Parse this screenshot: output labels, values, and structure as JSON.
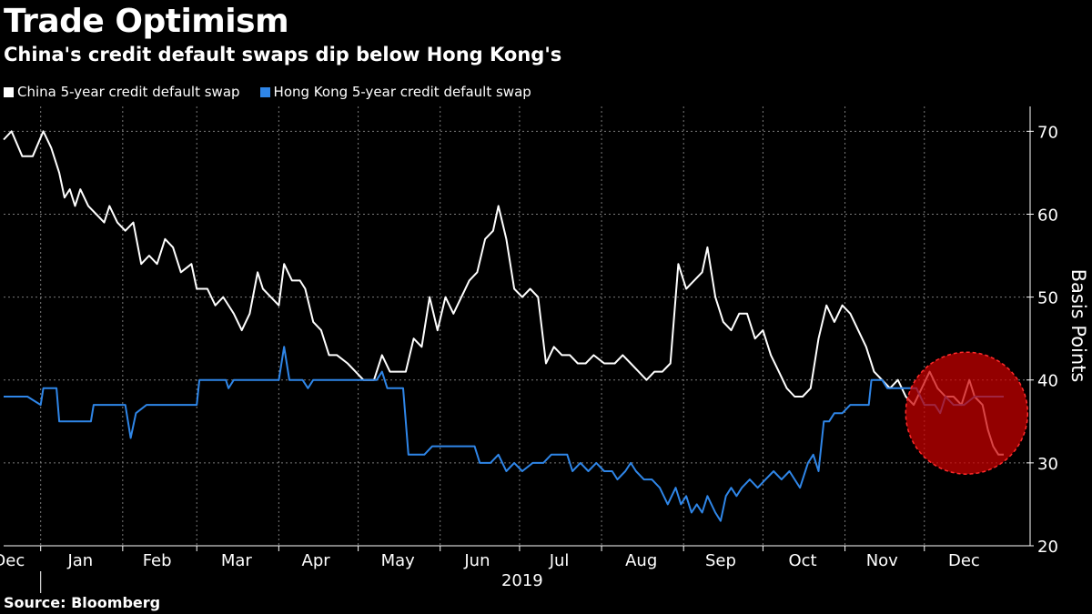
{
  "chart_data": {
    "type": "line",
    "title": "Trade Optimism",
    "subtitle": "China's credit default swaps dip below Hong Kong's",
    "source": "Source: Bloomberg",
    "ylabel": "Basis Points",
    "ylim": [
      20,
      73
    ],
    "yticks": [
      20,
      30,
      40,
      50,
      60,
      70
    ],
    "xrange": [
      "2018-12-18",
      "2019-12-31"
    ],
    "xtick_labels": [
      {
        "date": "2018-12-20",
        "label": "Dec"
      },
      {
        "date": "2019-01-16",
        "label": "Jan"
      },
      {
        "date": "2019-02-14",
        "label": "Feb"
      },
      {
        "date": "2019-03-16",
        "label": "Mar"
      },
      {
        "date": "2019-04-15",
        "label": "Apr"
      },
      {
        "date": "2019-05-16",
        "label": "May"
      },
      {
        "date": "2019-06-15",
        "label": "Jun"
      },
      {
        "date": "2019-07-16",
        "label": "Jul"
      },
      {
        "date": "2019-08-16",
        "label": "Aug"
      },
      {
        "date": "2019-09-15",
        "label": "Sep"
      },
      {
        "date": "2019-10-16",
        "label": "Oct"
      },
      {
        "date": "2019-11-15",
        "label": "Nov"
      },
      {
        "date": "2019-12-16",
        "label": "Dec"
      }
    ],
    "year_label": "2019",
    "grid": true,
    "legend_position": "top-left",
    "highlight": {
      "date": "2019-12-17",
      "value": 36,
      "color": "#cc0000"
    },
    "series": [
      {
        "name": "China 5-year credit default swap",
        "color": "#ffffff",
        "points": [
          [
            "2018-12-18",
            69
          ],
          [
            "2018-12-21",
            70
          ],
          [
            "2018-12-25",
            67
          ],
          [
            "2018-12-29",
            67
          ],
          [
            "2019-01-02",
            70
          ],
          [
            "2019-01-05",
            68
          ],
          [
            "2019-01-08",
            65
          ],
          [
            "2019-01-10",
            62
          ],
          [
            "2019-01-12",
            63
          ],
          [
            "2019-01-14",
            61
          ],
          [
            "2019-01-16",
            63
          ],
          [
            "2019-01-19",
            61
          ],
          [
            "2019-01-22",
            60
          ],
          [
            "2019-01-25",
            59
          ],
          [
            "2019-01-27",
            61
          ],
          [
            "2019-01-30",
            59
          ],
          [
            "2019-02-02",
            58
          ],
          [
            "2019-02-05",
            59
          ],
          [
            "2019-02-08",
            54
          ],
          [
            "2019-02-11",
            55
          ],
          [
            "2019-02-14",
            54
          ],
          [
            "2019-02-17",
            57
          ],
          [
            "2019-02-20",
            56
          ],
          [
            "2019-02-23",
            53
          ],
          [
            "2019-02-27",
            54
          ],
          [
            "2019-03-01",
            51
          ],
          [
            "2019-03-05",
            51
          ],
          [
            "2019-03-08",
            49
          ],
          [
            "2019-03-11",
            50
          ],
          [
            "2019-03-15",
            48
          ],
          [
            "2019-03-18",
            46
          ],
          [
            "2019-03-21",
            48
          ],
          [
            "2019-03-24",
            53
          ],
          [
            "2019-03-26",
            51
          ],
          [
            "2019-03-29",
            50
          ],
          [
            "2019-04-01",
            49
          ],
          [
            "2019-04-03",
            54
          ],
          [
            "2019-04-06",
            52
          ],
          [
            "2019-04-09",
            52
          ],
          [
            "2019-04-11",
            51
          ],
          [
            "2019-04-14",
            47
          ],
          [
            "2019-04-17",
            46
          ],
          [
            "2019-04-20",
            43
          ],
          [
            "2019-04-23",
            43
          ],
          [
            "2019-04-27",
            42
          ],
          [
            "2019-04-30",
            41
          ],
          [
            "2019-05-03",
            40
          ],
          [
            "2019-05-07",
            40
          ],
          [
            "2019-05-10",
            43
          ],
          [
            "2019-05-13",
            41
          ],
          [
            "2019-05-16",
            41
          ],
          [
            "2019-05-19",
            41
          ],
          [
            "2019-05-22",
            45
          ],
          [
            "2019-05-25",
            44
          ],
          [
            "2019-05-28",
            50
          ],
          [
            "2019-05-31",
            46
          ],
          [
            "2019-06-03",
            50
          ],
          [
            "2019-06-06",
            48
          ],
          [
            "2019-06-09",
            50
          ],
          [
            "2019-06-12",
            52
          ],
          [
            "2019-06-15",
            53
          ],
          [
            "2019-06-18",
            57
          ],
          [
            "2019-06-21",
            58
          ],
          [
            "2019-06-23",
            61
          ],
          [
            "2019-06-26",
            57
          ],
          [
            "2019-06-29",
            51
          ],
          [
            "2019-07-02",
            50
          ],
          [
            "2019-07-05",
            51
          ],
          [
            "2019-07-08",
            50
          ],
          [
            "2019-07-11",
            42
          ],
          [
            "2019-07-14",
            44
          ],
          [
            "2019-07-17",
            43
          ],
          [
            "2019-07-20",
            43
          ],
          [
            "2019-07-23",
            42
          ],
          [
            "2019-07-26",
            42
          ],
          [
            "2019-07-29",
            43
          ],
          [
            "2019-08-02",
            42
          ],
          [
            "2019-08-06",
            42
          ],
          [
            "2019-08-09",
            43
          ],
          [
            "2019-08-12",
            42
          ],
          [
            "2019-08-15",
            41
          ],
          [
            "2019-08-18",
            40
          ],
          [
            "2019-08-21",
            41
          ],
          [
            "2019-08-24",
            41
          ],
          [
            "2019-08-27",
            42
          ],
          [
            "2019-08-30",
            54
          ],
          [
            "2019-09-02",
            51
          ],
          [
            "2019-09-05",
            52
          ],
          [
            "2019-09-08",
            53
          ],
          [
            "2019-09-10",
            56
          ],
          [
            "2019-09-13",
            50
          ],
          [
            "2019-09-16",
            47
          ],
          [
            "2019-09-19",
            46
          ],
          [
            "2019-09-22",
            48
          ],
          [
            "2019-09-25",
            48
          ],
          [
            "2019-09-28",
            45
          ],
          [
            "2019-10-01",
            46
          ],
          [
            "2019-10-04",
            43
          ],
          [
            "2019-10-07",
            41
          ],
          [
            "2019-10-10",
            39
          ],
          [
            "2019-10-13",
            38
          ],
          [
            "2019-10-16",
            38
          ],
          [
            "2019-10-19",
            39
          ],
          [
            "2019-10-22",
            45
          ],
          [
            "2019-10-25",
            49
          ],
          [
            "2019-10-28",
            47
          ],
          [
            "2019-10-31",
            49
          ],
          [
            "2019-11-03",
            48
          ],
          [
            "2019-11-06",
            46
          ],
          [
            "2019-11-09",
            44
          ],
          [
            "2019-11-12",
            41
          ],
          [
            "2019-11-15",
            40
          ],
          [
            "2019-11-18",
            39
          ],
          [
            "2019-11-21",
            40
          ],
          [
            "2019-11-24",
            38
          ],
          [
            "2019-11-27",
            37
          ],
          [
            "2019-11-30",
            39
          ],
          [
            "2019-12-03",
            41
          ],
          [
            "2019-12-06",
            39
          ],
          [
            "2019-12-09",
            38
          ],
          [
            "2019-12-12",
            38
          ],
          [
            "2019-12-15",
            37
          ],
          [
            "2019-12-18",
            40
          ],
          [
            "2019-12-20",
            38
          ],
          [
            "2019-12-23",
            37
          ],
          [
            "2019-12-25",
            34
          ],
          [
            "2019-12-27",
            32
          ],
          [
            "2019-12-29",
            31
          ],
          [
            "2019-12-31",
            31
          ]
        ]
      },
      {
        "name": "Hong Kong 5-year credit default swap",
        "color": "#2f86e8",
        "points": [
          [
            "2018-12-18",
            38
          ],
          [
            "2018-12-21",
            38
          ],
          [
            "2018-12-27",
            38
          ],
          [
            "2019-01-01",
            37
          ],
          [
            "2019-01-02",
            39
          ],
          [
            "2019-01-07",
            39
          ],
          [
            "2019-01-08",
            35
          ],
          [
            "2019-01-15",
            35
          ],
          [
            "2019-01-20",
            35
          ],
          [
            "2019-01-21",
            37
          ],
          [
            "2019-01-28",
            37
          ],
          [
            "2019-02-02",
            37
          ],
          [
            "2019-02-04",
            33
          ],
          [
            "2019-02-06",
            36
          ],
          [
            "2019-02-10",
            37
          ],
          [
            "2019-02-20",
            37
          ],
          [
            "2019-03-01",
            37
          ],
          [
            "2019-03-02",
            40
          ],
          [
            "2019-03-12",
            40
          ],
          [
            "2019-03-13",
            39
          ],
          [
            "2019-03-15",
            40
          ],
          [
            "2019-03-30",
            40
          ],
          [
            "2019-04-01",
            40
          ],
          [
            "2019-04-03",
            44
          ],
          [
            "2019-04-05",
            40
          ],
          [
            "2019-04-10",
            40
          ],
          [
            "2019-04-12",
            39
          ],
          [
            "2019-04-14",
            40
          ],
          [
            "2019-04-30",
            40
          ],
          [
            "2019-05-08",
            40
          ],
          [
            "2019-05-10",
            41
          ],
          [
            "2019-05-12",
            39
          ],
          [
            "2019-05-14",
            39
          ],
          [
            "2019-05-18",
            39
          ],
          [
            "2019-05-20",
            31
          ],
          [
            "2019-05-23",
            31
          ],
          [
            "2019-05-26",
            31
          ],
          [
            "2019-05-29",
            32
          ],
          [
            "2019-06-02",
            32
          ],
          [
            "2019-06-05",
            32
          ],
          [
            "2019-06-10",
            32
          ],
          [
            "2019-06-14",
            32
          ],
          [
            "2019-06-16",
            30
          ],
          [
            "2019-06-20",
            30
          ],
          [
            "2019-06-23",
            31
          ],
          [
            "2019-06-26",
            29
          ],
          [
            "2019-06-29",
            30
          ],
          [
            "2019-07-02",
            29
          ],
          [
            "2019-07-06",
            30
          ],
          [
            "2019-07-10",
            30
          ],
          [
            "2019-07-13",
            31
          ],
          [
            "2019-07-16",
            31
          ],
          [
            "2019-07-19",
            31
          ],
          [
            "2019-07-21",
            29
          ],
          [
            "2019-07-24",
            30
          ],
          [
            "2019-07-27",
            29
          ],
          [
            "2019-07-30",
            30
          ],
          [
            "2019-08-02",
            29
          ],
          [
            "2019-08-05",
            29
          ],
          [
            "2019-08-07",
            28
          ],
          [
            "2019-08-10",
            29
          ],
          [
            "2019-08-12",
            30
          ],
          [
            "2019-08-14",
            29
          ],
          [
            "2019-08-17",
            28
          ],
          [
            "2019-08-20",
            28
          ],
          [
            "2019-08-23",
            27
          ],
          [
            "2019-08-26",
            25
          ],
          [
            "2019-08-29",
            27
          ],
          [
            "2019-08-31",
            25
          ],
          [
            "2019-09-02",
            26
          ],
          [
            "2019-09-04",
            24
          ],
          [
            "2019-09-06",
            25
          ],
          [
            "2019-09-08",
            24
          ],
          [
            "2019-09-10",
            26
          ],
          [
            "2019-09-13",
            24
          ],
          [
            "2019-09-15",
            23
          ],
          [
            "2019-09-17",
            26
          ],
          [
            "2019-09-19",
            27
          ],
          [
            "2019-09-21",
            26
          ],
          [
            "2019-09-23",
            27
          ],
          [
            "2019-09-26",
            28
          ],
          [
            "2019-09-29",
            27
          ],
          [
            "2019-10-02",
            28
          ],
          [
            "2019-10-05",
            29
          ],
          [
            "2019-10-08",
            28
          ],
          [
            "2019-10-11",
            29
          ],
          [
            "2019-10-13",
            28
          ],
          [
            "2019-10-15",
            27
          ],
          [
            "2019-10-18",
            30
          ],
          [
            "2019-10-20",
            31
          ],
          [
            "2019-10-22",
            29
          ],
          [
            "2019-10-24",
            35
          ],
          [
            "2019-10-26",
            35
          ],
          [
            "2019-10-28",
            36
          ],
          [
            "2019-10-31",
            36
          ],
          [
            "2019-11-03",
            37
          ],
          [
            "2019-11-06",
            37
          ],
          [
            "2019-11-10",
            37
          ],
          [
            "2019-11-11",
            40
          ],
          [
            "2019-11-15",
            40
          ],
          [
            "2019-11-17",
            39
          ],
          [
            "2019-11-24",
            39
          ],
          [
            "2019-11-28",
            39
          ],
          [
            "2019-12-01",
            37
          ],
          [
            "2019-12-05",
            37
          ],
          [
            "2019-12-07",
            36
          ],
          [
            "2019-12-09",
            38
          ],
          [
            "2019-12-12",
            37
          ],
          [
            "2019-12-16",
            37
          ],
          [
            "2019-12-20",
            38
          ],
          [
            "2019-12-24",
            38
          ],
          [
            "2019-12-28",
            38
          ],
          [
            "2019-12-31",
            38
          ]
        ]
      }
    ]
  }
}
